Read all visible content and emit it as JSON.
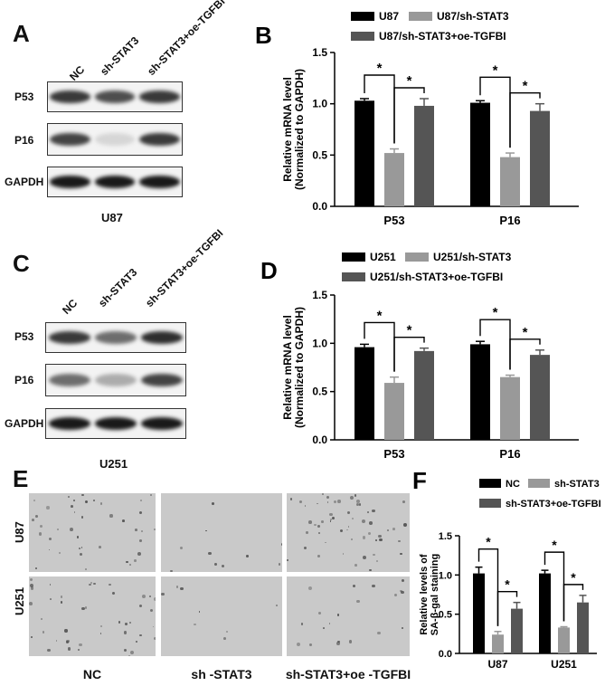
{
  "panels": {
    "A": {
      "letter": "A",
      "lanes": [
        "NC",
        "sh-STAT3",
        "sh-STAT3+oe-TGFBI"
      ],
      "rows": [
        "P53",
        "P16",
        "GAPDH"
      ],
      "caption": "U87",
      "band_intensity": {
        "P53": [
          0.85,
          0.75,
          0.85
        ],
        "P16": [
          0.8,
          0.1,
          0.85
        ],
        "GAPDH": [
          1.0,
          1.0,
          1.0
        ]
      }
    },
    "C": {
      "letter": "C",
      "lanes": [
        "NC",
        "sh-STAT3",
        "sh-STAT3+oe-TGFBI"
      ],
      "rows": [
        "P53",
        "P16",
        "GAPDH"
      ],
      "caption": "U251",
      "band_intensity": {
        "P53": [
          0.85,
          0.6,
          0.9
        ],
        "P16": [
          0.6,
          0.3,
          0.8
        ],
        "GAPDH": [
          1.0,
          1.0,
          1.0
        ]
      }
    },
    "E": {
      "letter": "E",
      "rows": [
        "U87",
        "U251"
      ],
      "columns": [
        "NC",
        "sh -STAT3",
        "sh-STAT3+oe -TGFBI"
      ]
    }
  },
  "chart_data": [
    {
      "id": "B",
      "letter": "B",
      "type": "bar",
      "categories": [
        "P53",
        "P16"
      ],
      "series": [
        {
          "name": "U87",
          "values": [
            1.03,
            1.01
          ],
          "errors": [
            0.02,
            0.02
          ],
          "color": "#000000"
        },
        {
          "name": "U87/sh-STAT3",
          "values": [
            0.52,
            0.48
          ],
          "errors": [
            0.04,
            0.04
          ],
          "color": "#999999"
        },
        {
          "name": "U87/sh-STAT3+oe-TGFBI",
          "values": [
            0.98,
            0.93
          ],
          "errors": [
            0.07,
            0.07
          ],
          "color": "#555555"
        }
      ],
      "ylabel": "Relative mRNA level\n(Normalized to GAPDH)",
      "ylim": [
        0,
        1.5
      ],
      "yticks": [
        "0.0",
        "0.5",
        "1.0",
        "1.5"
      ],
      "significance": "*"
    },
    {
      "id": "D",
      "letter": "D",
      "type": "bar",
      "categories": [
        "P53",
        "P16"
      ],
      "series": [
        {
          "name": "U251",
          "values": [
            0.96,
            0.99
          ],
          "errors": [
            0.03,
            0.03
          ],
          "color": "#000000"
        },
        {
          "name": "U251/sh-STAT3",
          "values": [
            0.59,
            0.65
          ],
          "errors": [
            0.06,
            0.02
          ],
          "color": "#999999"
        },
        {
          "name": "U251/sh-STAT3+oe-TGFBI",
          "values": [
            0.92,
            0.88
          ],
          "errors": [
            0.03,
            0.05
          ],
          "color": "#555555"
        }
      ],
      "ylabel": "Relative mRNA level\n(Normalized to GAPDH)",
      "ylim": [
        0,
        1.5
      ],
      "yticks": [
        "0.0",
        "0.5",
        "1.0",
        "1.5"
      ],
      "significance": "*"
    },
    {
      "id": "F",
      "letter": "F",
      "type": "bar",
      "categories": [
        "U87",
        "U251"
      ],
      "series": [
        {
          "name": "NC",
          "values": [
            1.02,
            1.02
          ],
          "errors": [
            0.08,
            0.04
          ],
          "color": "#000000"
        },
        {
          "name": "sh-STAT3",
          "values": [
            0.24,
            0.33
          ],
          "errors": [
            0.04,
            0.01
          ],
          "color": "#999999"
        },
        {
          "name": "sh-STAT3+oe-TGFBI",
          "values": [
            0.57,
            0.65
          ],
          "errors": [
            0.08,
            0.09
          ],
          "color": "#555555"
        }
      ],
      "ylabel": "Relative levels of\nSA-β-gal staining",
      "ylim": [
        0,
        1.5
      ],
      "yticks": [
        "0.0",
        "0.5",
        "1.0",
        "1.5"
      ],
      "significance": "*"
    }
  ]
}
